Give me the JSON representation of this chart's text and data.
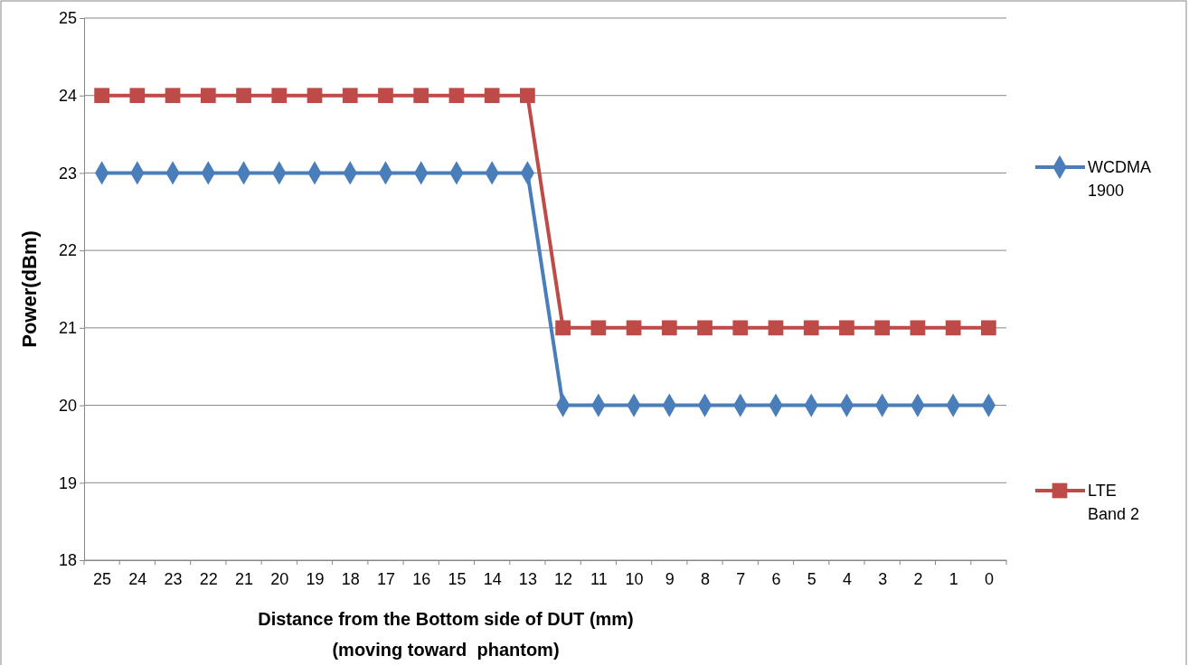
{
  "chart_data": {
    "type": "line",
    "xlabel": "Distance from the Bottom side of DUT (mm)\n(moving toward  phantom)",
    "ylabel": "Power(dBm)",
    "categories": [
      "25",
      "24",
      "23",
      "22",
      "21",
      "20",
      "19",
      "18",
      "17",
      "16",
      "15",
      "14",
      "13",
      "12",
      "11",
      "10",
      "9",
      "8",
      "7",
      "6",
      "5",
      "4",
      "3",
      "2",
      "1",
      "0"
    ],
    "ylim": [
      18,
      25
    ],
    "yticks": [
      18,
      19,
      20,
      21,
      22,
      23,
      24,
      25
    ],
    "grid": "y",
    "legend": "right",
    "line_style": "solid",
    "series": [
      {
        "name": "WCDMA 1900",
        "color": "#4a7ebb",
        "marker": "diamond",
        "values": [
          23,
          23,
          23,
          23,
          23,
          23,
          23,
          23,
          23,
          23,
          23,
          23,
          23,
          20,
          20,
          20,
          20,
          20,
          20,
          20,
          20,
          20,
          20,
          20,
          20,
          20
        ]
      },
      {
        "name": "LTE Band 2",
        "color": "#be4b48",
        "marker": "square",
        "values": [
          24,
          24,
          24,
          24,
          24,
          24,
          24,
          24,
          24,
          24,
          24,
          24,
          24,
          21,
          21,
          21,
          21,
          21,
          21,
          21,
          21,
          21,
          21,
          21,
          21,
          21
        ]
      }
    ]
  }
}
